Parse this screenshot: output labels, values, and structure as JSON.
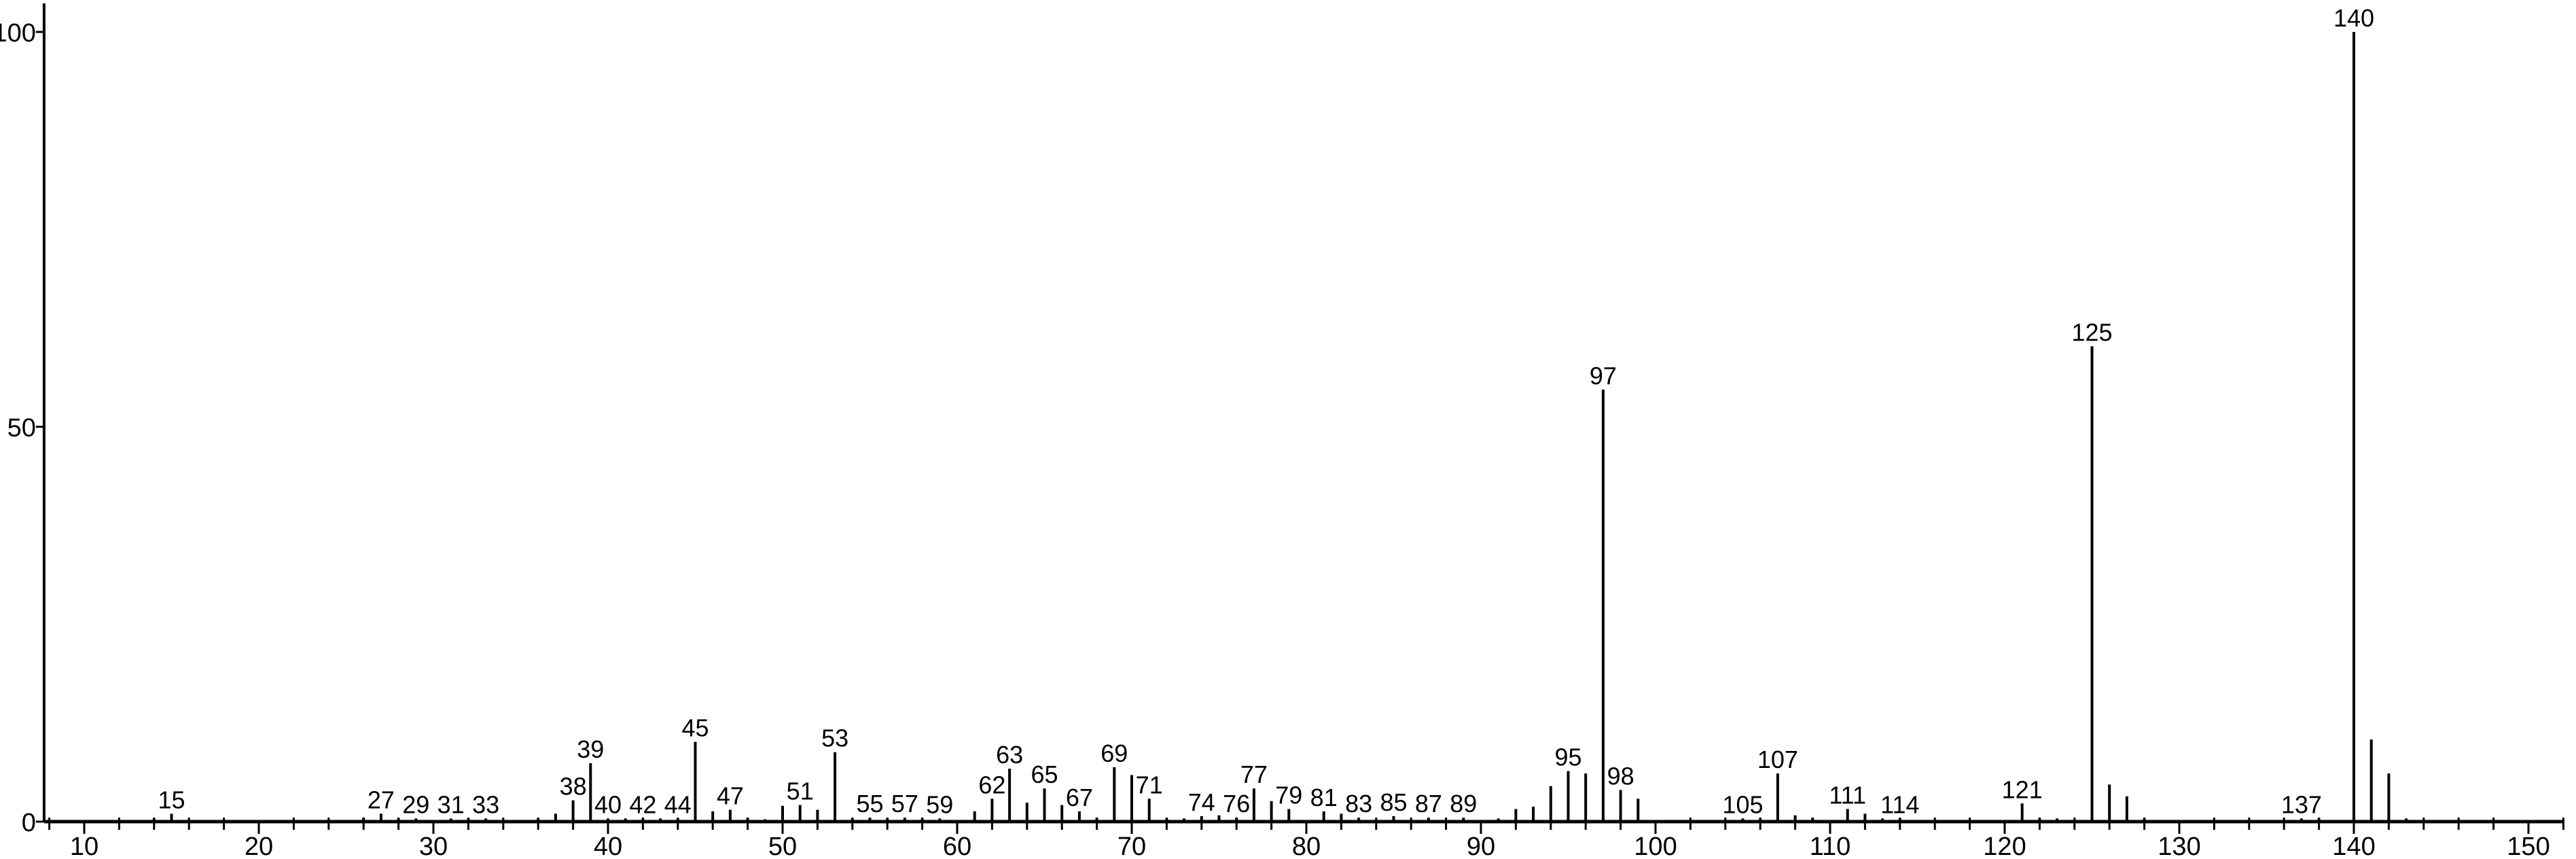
{
  "chart_data": {
    "type": "bar",
    "title": "",
    "xlabel": "",
    "ylabel": "",
    "xlim": [
      7.7,
      152
    ],
    "ylim": [
      0,
      100
    ],
    "x_ticks": [
      10,
      20,
      30,
      40,
      50,
      60,
      70,
      80,
      90,
      100,
      110,
      120,
      130,
      140,
      150
    ],
    "y_ticks": [
      0,
      50,
      100
    ],
    "grid": false,
    "color": "#000000",
    "peaks": [
      {
        "mz": 14,
        "i": 0.4
      },
      {
        "mz": 15,
        "i": 1.0,
        "label": "15"
      },
      {
        "mz": 26,
        "i": 0.5
      },
      {
        "mz": 27,
        "i": 1.0,
        "label": "27"
      },
      {
        "mz": 28,
        "i": 0.4
      },
      {
        "mz": 29,
        "i": 0.4,
        "label": "29"
      },
      {
        "mz": 31,
        "i": 0.4,
        "label": "31"
      },
      {
        "mz": 32,
        "i": 0.4
      },
      {
        "mz": 33,
        "i": 0.4,
        "label": "33"
      },
      {
        "mz": 36,
        "i": 0.4
      },
      {
        "mz": 37,
        "i": 1.0
      },
      {
        "mz": 38,
        "i": 2.7,
        "label": "38"
      },
      {
        "mz": 39,
        "i": 7.4,
        "label": "39"
      },
      {
        "mz": 40,
        "i": 0.4,
        "label": "40"
      },
      {
        "mz": 41,
        "i": 0.4
      },
      {
        "mz": 42,
        "i": 0.4,
        "label": "42"
      },
      {
        "mz": 43,
        "i": 0.4
      },
      {
        "mz": 44,
        "i": 0.4,
        "label": "44"
      },
      {
        "mz": 45,
        "i": 10.1,
        "label": "45"
      },
      {
        "mz": 46,
        "i": 1.3
      },
      {
        "mz": 47,
        "i": 1.5,
        "label": "47"
      },
      {
        "mz": 48,
        "i": 0.5
      },
      {
        "mz": 49,
        "i": 0.3
      },
      {
        "mz": 50,
        "i": 2.0
      },
      {
        "mz": 51,
        "i": 2.1,
        "label": "51"
      },
      {
        "mz": 52,
        "i": 1.5
      },
      {
        "mz": 53,
        "i": 8.8,
        "label": "53"
      },
      {
        "mz": 54,
        "i": 0.4
      },
      {
        "mz": 55,
        "i": 0.5,
        "label": "55"
      },
      {
        "mz": 56,
        "i": 0.4
      },
      {
        "mz": 57,
        "i": 0.5,
        "label": "57"
      },
      {
        "mz": 58,
        "i": 0.4
      },
      {
        "mz": 59,
        "i": 0.4,
        "label": "59"
      },
      {
        "mz": 61,
        "i": 1.3
      },
      {
        "mz": 62,
        "i": 2.9,
        "label": "62"
      },
      {
        "mz": 63,
        "i": 6.7,
        "label": "63"
      },
      {
        "mz": 64,
        "i": 2.4
      },
      {
        "mz": 65,
        "i": 4.2,
        "label": "65"
      },
      {
        "mz": 66,
        "i": 2.1
      },
      {
        "mz": 67,
        "i": 1.3,
        "label": "67"
      },
      {
        "mz": 68,
        "i": 0.5
      },
      {
        "mz": 69,
        "i": 6.9,
        "label": "69"
      },
      {
        "mz": 70,
        "i": 5.9
      },
      {
        "mz": 71,
        "i": 2.9,
        "label": "71"
      },
      {
        "mz": 72,
        "i": 0.4
      },
      {
        "mz": 73,
        "i": 0.4
      },
      {
        "mz": 74,
        "i": 0.7,
        "label": "74"
      },
      {
        "mz": 75,
        "i": 0.8
      },
      {
        "mz": 76,
        "i": 0.5,
        "label": "76"
      },
      {
        "mz": 77,
        "i": 4.2,
        "label": "77"
      },
      {
        "mz": 78,
        "i": 2.6
      },
      {
        "mz": 79,
        "i": 1.6,
        "label": "79"
      },
      {
        "mz": 81,
        "i": 1.3,
        "label": "81"
      },
      {
        "mz": 82,
        "i": 1.0
      },
      {
        "mz": 83,
        "i": 0.5,
        "label": "83"
      },
      {
        "mz": 85,
        "i": 0.7,
        "label": "85"
      },
      {
        "mz": 87,
        "i": 0.5,
        "label": "87"
      },
      {
        "mz": 89,
        "i": 0.5,
        "label": "89"
      },
      {
        "mz": 91,
        "i": 0.4
      },
      {
        "mz": 92,
        "i": 1.6
      },
      {
        "mz": 93,
        "i": 1.9
      },
      {
        "mz": 94,
        "i": 4.5
      },
      {
        "mz": 95,
        "i": 6.4,
        "label": "95"
      },
      {
        "mz": 96,
        "i": 6.1
      },
      {
        "mz": 97,
        "i": 54.7,
        "label": "97"
      },
      {
        "mz": 98,
        "i": 4.0,
        "label": "98"
      },
      {
        "mz": 99,
        "i": 2.9
      },
      {
        "mz": 105,
        "i": 0.4,
        "label": "105"
      },
      {
        "mz": 106,
        "i": 0.4
      },
      {
        "mz": 107,
        "i": 6.1,
        "label": "107"
      },
      {
        "mz": 108,
        "i": 0.8
      },
      {
        "mz": 109,
        "i": 0.5
      },
      {
        "mz": 111,
        "i": 1.6,
        "label": "111"
      },
      {
        "mz": 112,
        "i": 1.0
      },
      {
        "mz": 113,
        "i": 0.4
      },
      {
        "mz": 114,
        "i": 0.4,
        "label": "114"
      },
      {
        "mz": 121,
        "i": 2.3,
        "label": "121"
      },
      {
        "mz": 122,
        "i": 0.4
      },
      {
        "mz": 123,
        "i": 0.4
      },
      {
        "mz": 125,
        "i": 60.2,
        "label": "125"
      },
      {
        "mz": 126,
        "i": 4.7
      },
      {
        "mz": 127,
        "i": 3.2
      },
      {
        "mz": 128,
        "i": 0.4
      },
      {
        "mz": 137,
        "i": 0.4,
        "label": "137"
      },
      {
        "mz": 138,
        "i": 0.4
      },
      {
        "mz": 140,
        "i": 100,
        "label": "140"
      },
      {
        "mz": 141,
        "i": 10.4
      },
      {
        "mz": 142,
        "i": 6.1
      },
      {
        "mz": 143,
        "i": 0.4
      }
    ]
  }
}
